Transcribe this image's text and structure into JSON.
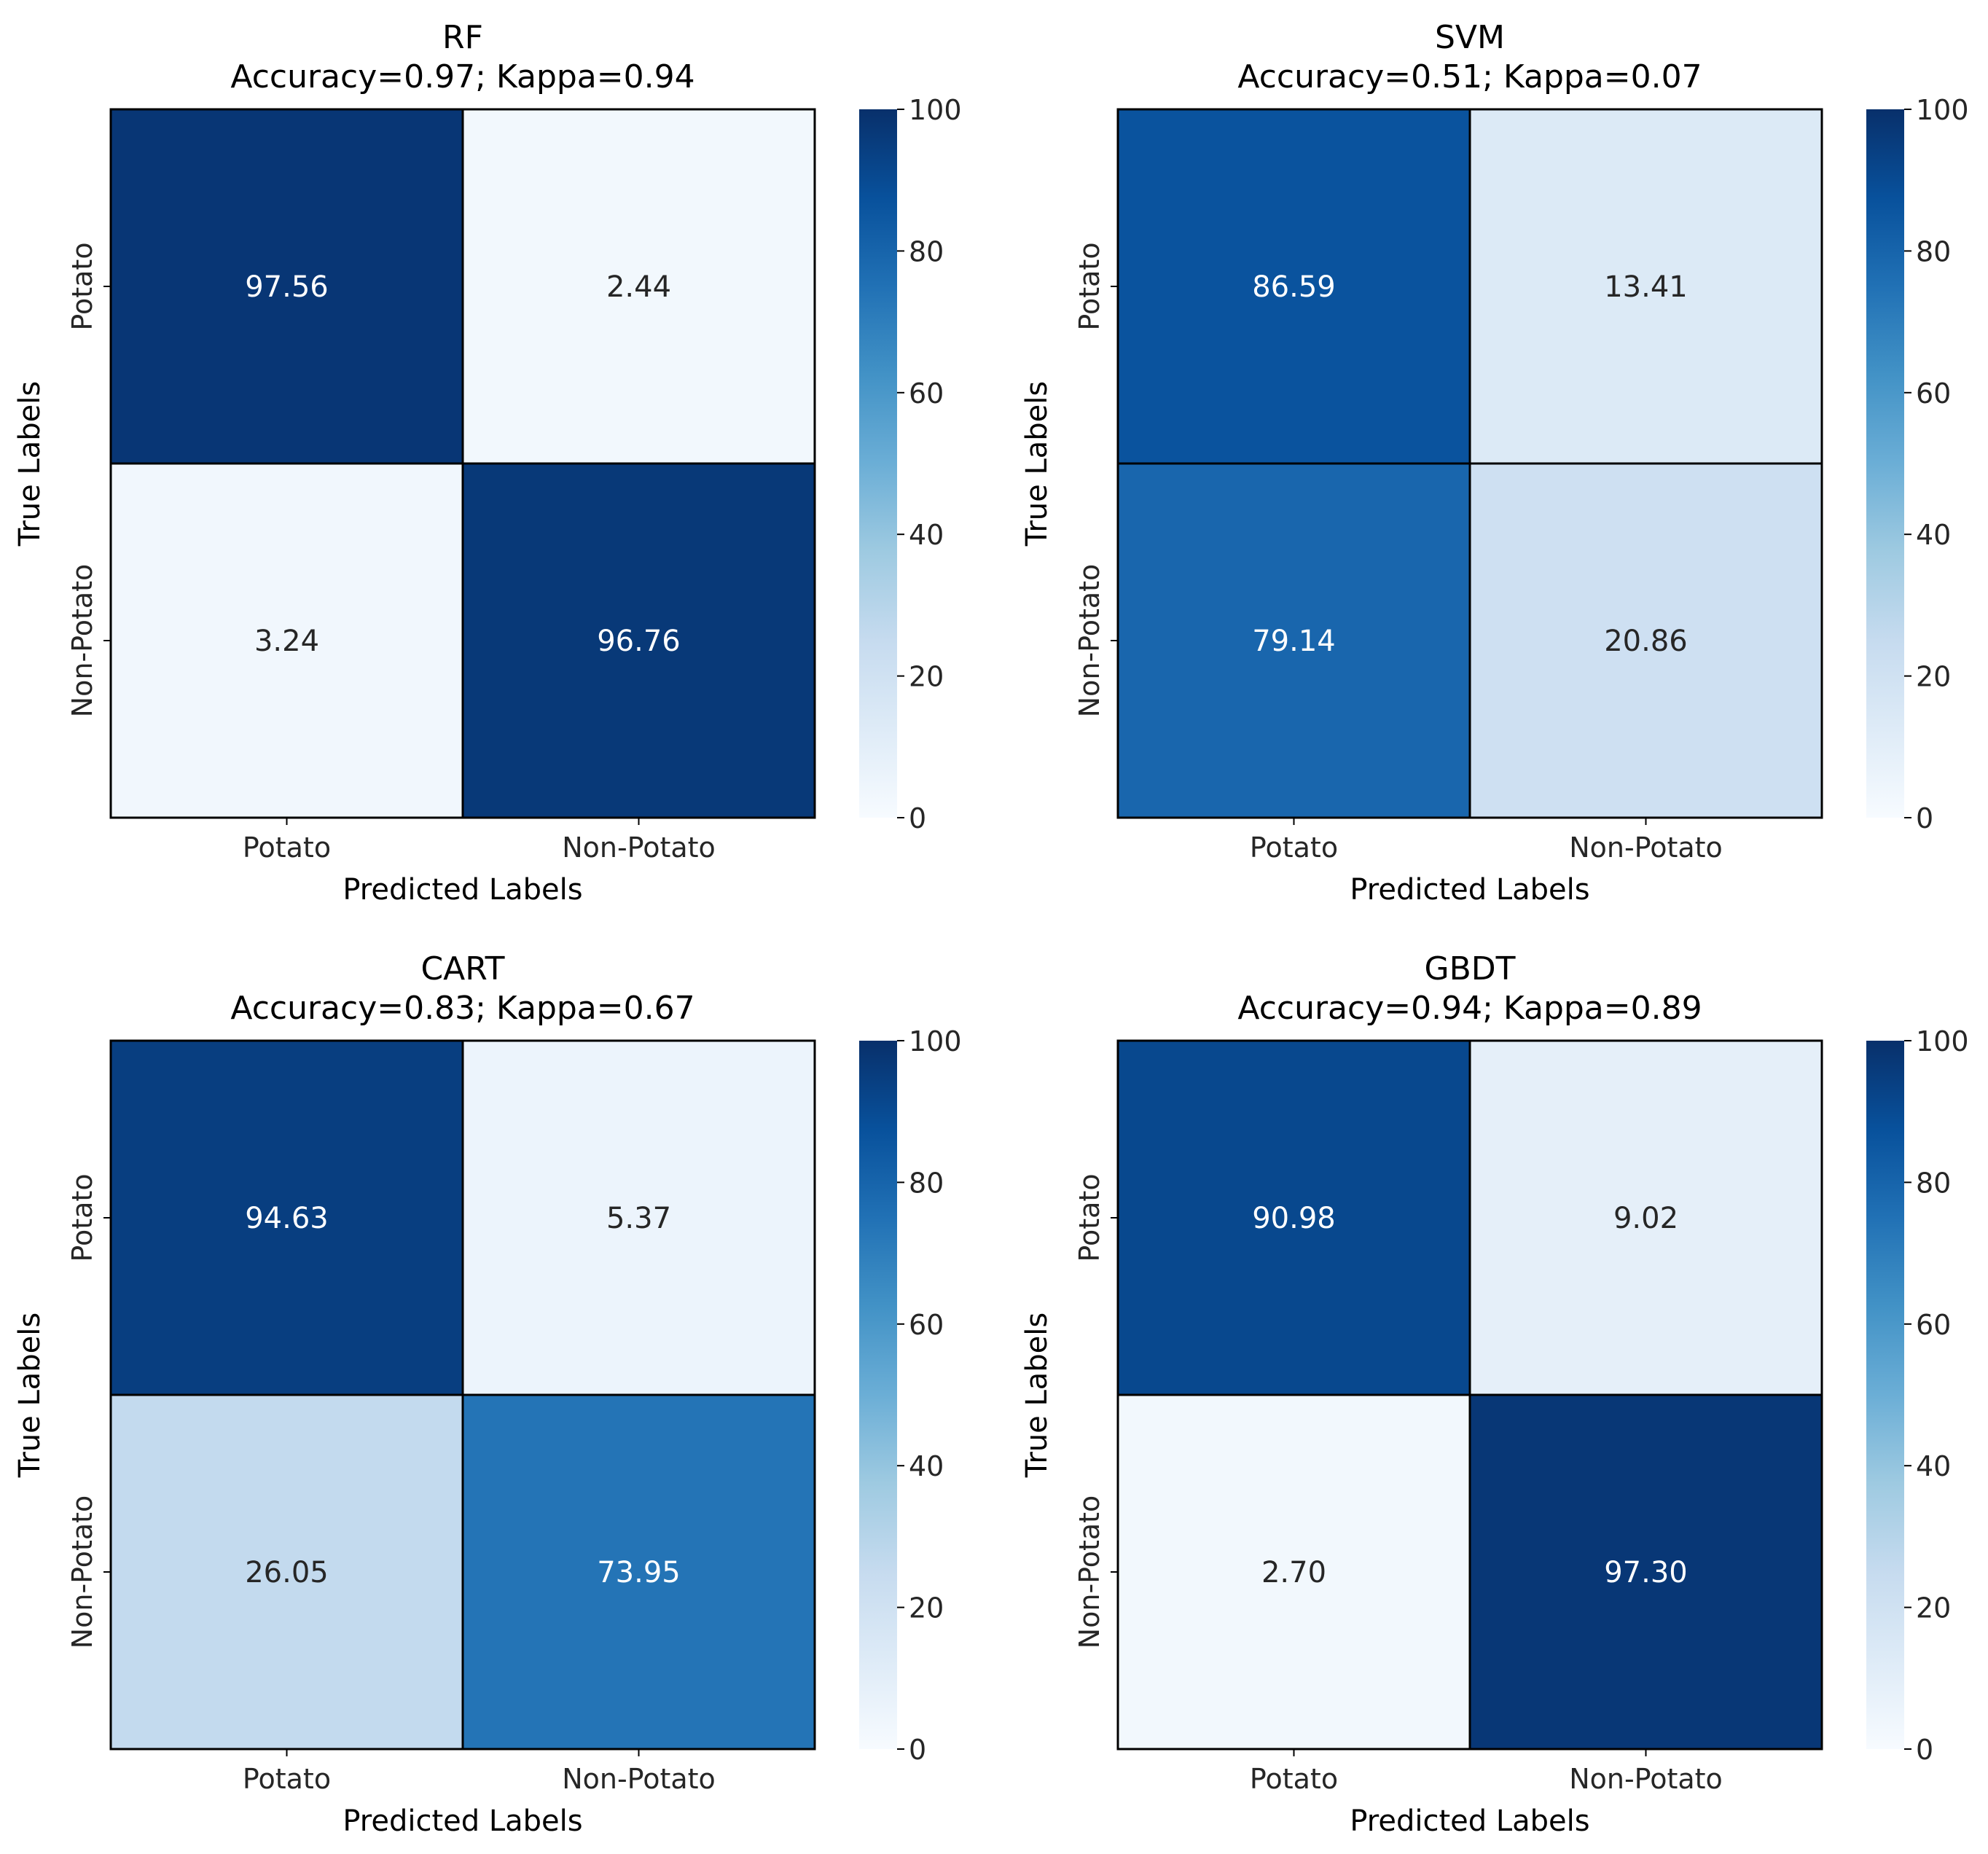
{
  "chart_data": [
    {
      "type": "heatmap",
      "title": "RF",
      "subtitle": "Accuracy=0.97; Kappa=0.94",
      "xlabel": "Predicted Labels",
      "ylabel": "True Labels",
      "x_categories": [
        "Potato",
        "Non-Potato"
      ],
      "y_categories": [
        "Potato",
        "Non-Potato"
      ],
      "values": [
        [
          97.56,
          2.44
        ],
        [
          3.24,
          96.76
        ]
      ],
      "value_labels": [
        [
          "97.56",
          "2.44"
        ],
        [
          "3.24",
          "96.76"
        ]
      ],
      "colorbar": {
        "range": [
          0,
          100
        ],
        "ticks": [
          "0",
          "20",
          "40",
          "60",
          "80",
          "100"
        ]
      }
    },
    {
      "type": "heatmap",
      "title": "SVM",
      "subtitle": "Accuracy=0.51; Kappa=0.07",
      "xlabel": "Predicted Labels",
      "ylabel": "True Labels",
      "x_categories": [
        "Potato",
        "Non-Potato"
      ],
      "y_categories": [
        "Potato",
        "Non-Potato"
      ],
      "values": [
        [
          86.59,
          13.41
        ],
        [
          79.14,
          20.86
        ]
      ],
      "value_labels": [
        [
          "86.59",
          "13.41"
        ],
        [
          "79.14",
          "20.86"
        ]
      ],
      "colorbar": {
        "range": [
          0,
          100
        ],
        "ticks": [
          "0",
          "20",
          "40",
          "60",
          "80",
          "100"
        ]
      }
    },
    {
      "type": "heatmap",
      "title": "CART",
      "subtitle": "Accuracy=0.83; Kappa=0.67",
      "xlabel": "Predicted Labels",
      "ylabel": "True Labels",
      "x_categories": [
        "Potato",
        "Non-Potato"
      ],
      "y_categories": [
        "Potato",
        "Non-Potato"
      ],
      "values": [
        [
          94.63,
          5.37
        ],
        [
          26.05,
          73.95
        ]
      ],
      "value_labels": [
        [
          "94.63",
          "5.37"
        ],
        [
          "26.05",
          "73.95"
        ]
      ],
      "colorbar": {
        "range": [
          0,
          100
        ],
        "ticks": [
          "0",
          "20",
          "40",
          "60",
          "80",
          "100"
        ]
      }
    },
    {
      "type": "heatmap",
      "title": "GBDT",
      "subtitle": "Accuracy=0.94; Kappa=0.89",
      "xlabel": "Predicted Labels",
      "ylabel": "True Labels",
      "x_categories": [
        "Potato",
        "Non-Potato"
      ],
      "y_categories": [
        "Potato",
        "Non-Potato"
      ],
      "values": [
        [
          90.98,
          9.02
        ],
        [
          2.7,
          97.3
        ]
      ],
      "value_labels": [
        [
          "90.98",
          "9.02"
        ],
        [
          "2.70",
          "97.30"
        ]
      ],
      "colorbar": {
        "range": [
          0,
          100
        ],
        "ticks": [
          "0",
          "20",
          "40",
          "60",
          "80",
          "100"
        ]
      }
    }
  ],
  "colors": {
    "colormap": "Blues",
    "border": "#000000",
    "dark_text": "#262626",
    "light_text": "#ffffff"
  }
}
